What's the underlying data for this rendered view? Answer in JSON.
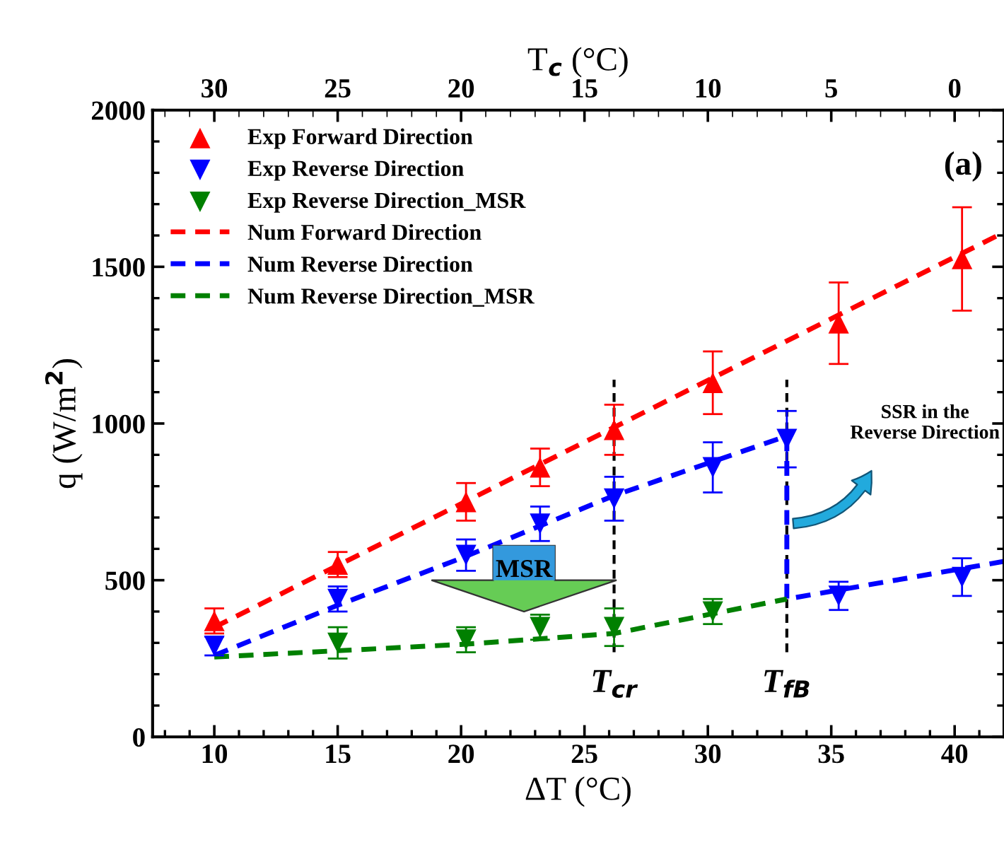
{
  "chart_data": {
    "type": "scatter",
    "xlabel": "ΔT (°C)",
    "ylabel": "q (W/m$^{2}$)",
    "x2label": "T$_{c}$ (°C)",
    "xlim": [
      7.5,
      42
    ],
    "xticks": [
      10,
      15,
      20,
      25,
      30,
      35,
      40
    ],
    "x2lim": [
      32.5,
      -2
    ],
    "x2ticks": [
      30,
      25,
      20,
      15,
      10,
      5,
      0
    ],
    "ylim": [
      0,
      2000
    ],
    "yticks": [
      0,
      500,
      1000,
      1500,
      2000
    ],
    "grid": false,
    "legend": "top left",
    "series": [
      {
        "name": "Exp Forward Direction",
        "marker": "triangle",
        "color": "#ff0000",
        "x": [
          10,
          15,
          20.2,
          23.2,
          26.2,
          30.2,
          35.3,
          40.3
        ],
        "values": [
          370,
          550,
          750,
          860,
          980,
          1130,
          1320,
          1525
        ],
        "errors": [
          40,
          40,
          60,
          60,
          80,
          100,
          130,
          165
        ]
      },
      {
        "name": "Exp Reverse Direction",
        "marker": "triangle_down",
        "color": "#0000ff",
        "x": [
          10,
          15,
          20.2,
          23.2,
          26.2,
          30.2,
          33.2,
          35.3,
          40.3
        ],
        "values": [
          290,
          440,
          580,
          680,
          760,
          860,
          950,
          450,
          510
        ],
        "errors": [
          30,
          40,
          50,
          55,
          70,
          80,
          90,
          45,
          60
        ]
      },
      {
        "name": "Exp Reverse Direction_MSR",
        "marker": "triangle_down",
        "color": "#008000",
        "x": [
          15,
          20.2,
          23.2,
          26.2,
          30.2
        ],
        "values": [
          300,
          310,
          350,
          350,
          400
        ],
        "errors": [
          50,
          40,
          40,
          60,
          40
        ]
      },
      {
        "name": "Num Forward Direction",
        "type": "line",
        "line_style": "dashed",
        "color": "#ff0000",
        "x": [
          10,
          42
        ],
        "values": [
          350,
          1610
        ]
      },
      {
        "name": "Num Reverse Direction",
        "type": "line",
        "line_style": "dashed",
        "color": "#0000ff",
        "x": [
          10,
          15,
          20,
          26.2,
          33.2,
          33.2,
          42
        ],
        "values": [
          260,
          420,
          570,
          770,
          960,
          440,
          560
        ]
      },
      {
        "name": "Num Reverse Direction_MSR",
        "type": "line",
        "line_style": "dashed",
        "color": "#008000",
        "x": [
          10,
          15,
          20,
          26.2,
          30,
          33.2
        ],
        "values": [
          255,
          275,
          295,
          330,
          390,
          440
        ]
      }
    ],
    "ref_lines": [
      {
        "axis": "x",
        "value": 26.2,
        "label": "T$_{cr}$",
        "color": "#000000",
        "line_style": "dashed"
      },
      {
        "axis": "x",
        "value": 33.2,
        "label": "T$_{fB}$",
        "color": "#000000",
        "line_style": "dashed"
      }
    ],
    "annotations": [
      "(a)",
      "MSR",
      "SSR in the\nReverse Direction"
    ]
  }
}
